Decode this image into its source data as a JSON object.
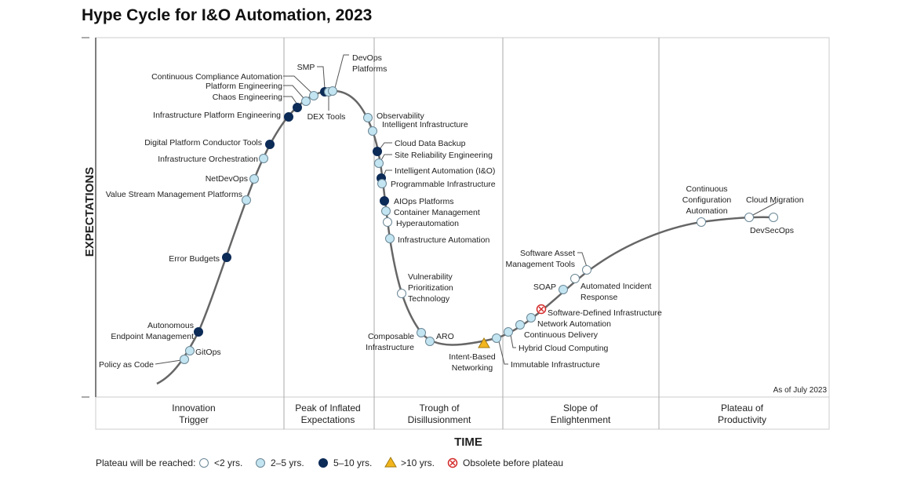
{
  "title": "Hype Cycle for I&O Automation, 2023",
  "y_axis_label": "EXPECTATIONS",
  "x_axis_label": "TIME",
  "as_of": "As of July 2023",
  "phases": [
    [
      "Innovation",
      "Trigger"
    ],
    [
      "Peak of Inflated",
      "Expectations"
    ],
    [
      "Trough of",
      "Disillusionment"
    ],
    [
      "Slope of",
      "Enlightenment"
    ],
    [
      "Plateau of",
      "Productivity"
    ]
  ],
  "legend": {
    "title": "Plateau will be reached:",
    "items": [
      {
        "label": "<2 yrs.",
        "status": "lt2"
      },
      {
        "label": "2–5 yrs.",
        "status": "2to5"
      },
      {
        "label": "5–10 yrs.",
        "status": "5to10"
      },
      {
        "label": ">10 yrs.",
        "status": "gt10"
      },
      {
        "label": "Obsolete before plateau",
        "status": "obsolete"
      }
    ]
  },
  "colors": {
    "lt2": "#ffffff",
    "2to5": "#c3e4f1",
    "5to10": "#0c2b57",
    "gt10": "#f2b51d",
    "obsolete": "#d42a2a",
    "curve": "#666666"
  },
  "technologies": [
    {
      "label": [
        "Policy as Code"
      ],
      "status": "2to5"
    },
    {
      "label": [
        "GitOps"
      ],
      "status": "2to5"
    },
    {
      "label": [
        "Autonomous",
        "Endpoint Management"
      ],
      "status": "5to10"
    },
    {
      "label": [
        "Error Budgets"
      ],
      "status": "5to10"
    },
    {
      "label": [
        "Value Stream Management Platforms"
      ],
      "status": "2to5"
    },
    {
      "label": [
        "NetDevOps"
      ],
      "status": "2to5"
    },
    {
      "label": [
        "Infrastructure Orchestration"
      ],
      "status": "2to5"
    },
    {
      "label": [
        "Digital Platform Conductor Tools"
      ],
      "status": "5to10"
    },
    {
      "label": [
        "Infrastructure Platform Engineering"
      ],
      "status": "5to10"
    },
    {
      "label": [
        "Chaos Engineering"
      ],
      "status": "5to10"
    },
    {
      "label": [
        "Platform Engineering"
      ],
      "status": "2to5"
    },
    {
      "label": [
        "Continuous Compliance Automation"
      ],
      "status": "2to5"
    },
    {
      "label": [
        "SMP"
      ],
      "status": "5to10"
    },
    {
      "label": [
        "DEX Tools"
      ],
      "status": "2to5"
    },
    {
      "label": [
        "DevOps",
        "Platforms"
      ],
      "status": "2to5"
    },
    {
      "label": [
        "Observability"
      ],
      "status": "2to5"
    },
    {
      "label": [
        "Intelligent Infrastructure"
      ],
      "status": "2to5"
    },
    {
      "label": [
        "Cloud Data Backup"
      ],
      "status": "5to10"
    },
    {
      "label": [
        "Site Reliability Engineering"
      ],
      "status": "2to5"
    },
    {
      "label": [
        "Intelligent Automation (I&O)"
      ],
      "status": "5to10"
    },
    {
      "label": [
        "Programmable Infrastructure"
      ],
      "status": "2to5"
    },
    {
      "label": [
        "AIOps Platforms"
      ],
      "status": "5to10"
    },
    {
      "label": [
        "Container Management"
      ],
      "status": "2to5"
    },
    {
      "label": [
        "Hyperautomation"
      ],
      "status": "lt2"
    },
    {
      "label": [
        "Infrastructure Automation"
      ],
      "status": "2to5"
    },
    {
      "label": [
        "Vulnerability",
        "Prioritization",
        "Technology"
      ],
      "status": "lt2"
    },
    {
      "label": [
        "Composable",
        "Infrastructure"
      ],
      "status": "2to5"
    },
    {
      "label": [
        "ARO"
      ],
      "status": "2to5"
    },
    {
      "label": [
        "Intent-Based",
        "Networking"
      ],
      "status": "gt10"
    },
    {
      "label": [
        "Immutable Infrastructure"
      ],
      "status": "2to5"
    },
    {
      "label": [
        "Hybrid Cloud Computing"
      ],
      "status": "2to5"
    },
    {
      "label": [
        "Continuous Delivery"
      ],
      "status": "2to5"
    },
    {
      "label": [
        "Network Automation"
      ],
      "status": "2to5"
    },
    {
      "label": [
        "Software-Defined Infrastructure"
      ],
      "status": "obsolete"
    },
    {
      "label": [
        "SOAP"
      ],
      "status": "2to5"
    },
    {
      "label": [
        "Automated Incident",
        "Response"
      ],
      "status": "lt2"
    },
    {
      "label": [
        "Software Asset",
        "Management Tools"
      ],
      "status": "lt2"
    },
    {
      "label": [
        "Continuous",
        "Configuration",
        "Automation"
      ],
      "status": "lt2"
    },
    {
      "label": [
        "Cloud Migration"
      ],
      "status": "lt2"
    },
    {
      "label": [
        "DevSecOps"
      ],
      "status": "lt2"
    }
  ]
}
